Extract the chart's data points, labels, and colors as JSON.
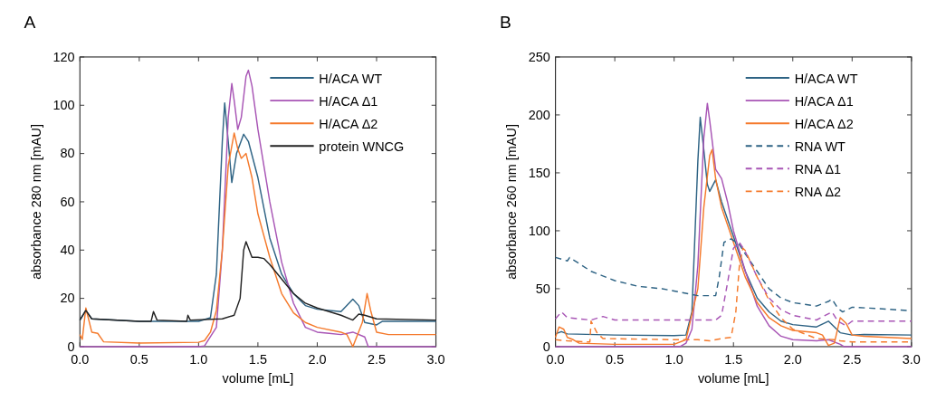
{
  "chart_data": [
    {
      "type": "line",
      "title": "A",
      "xlabel": "volume [mL]",
      "ylabel": "absorbance 280 nm [mAU]",
      "xlim": [
        0,
        3
      ],
      "ylim": [
        0,
        120
      ],
      "xticks": [
        {
          "value": 0,
          "label": "0.0"
        },
        {
          "value": 0.5,
          "label": "0.5"
        },
        {
          "value": 1,
          "label": "1.0"
        },
        {
          "value": 1.5,
          "label": "1.5"
        },
        {
          "value": 2,
          "label": "2.0"
        },
        {
          "value": 2.5,
          "label": "2.5"
        },
        {
          "value": 3,
          "label": "3.0"
        }
      ],
      "yticks": [
        0,
        20,
        40,
        60,
        80,
        100,
        120
      ],
      "legend": "top right",
      "grid": false,
      "series": [
        {
          "name": "H/ACA WT",
          "color": "#2e6384",
          "line_style": "solid",
          "x": [
            0,
            0.05,
            0.1,
            0.5,
            1.0,
            1.1,
            1.15,
            1.2,
            1.22,
            1.25,
            1.28,
            1.32,
            1.38,
            1.42,
            1.5,
            1.6,
            1.7,
            1.8,
            1.9,
            2.0,
            2.2,
            2.3,
            2.35,
            2.4,
            2.5,
            2.55,
            3.0
          ],
          "values": [
            11,
            15,
            11.5,
            10.5,
            10.5,
            12,
            30,
            85,
            101,
            85,
            68,
            80,
            88,
            85,
            70,
            45,
            30,
            22,
            17,
            15.5,
            14.5,
            19.7,
            17,
            10,
            9,
            10.5,
            10.5
          ]
        },
        {
          "name": "H/ACA Δ1",
          "color": "#a855b5",
          "line_style": "solid",
          "x": [
            0,
            1.0,
            1.05,
            1.15,
            1.2,
            1.25,
            1.28,
            1.3,
            1.33,
            1.36,
            1.4,
            1.42,
            1.45,
            1.5,
            1.6,
            1.7,
            1.8,
            1.9,
            2.0,
            2.1,
            2.2,
            2.3,
            2.4,
            2.43,
            3.0
          ],
          "values": [
            0,
            0,
            0.3,
            8,
            40,
            95,
            109,
            102,
            90,
            95,
            112,
            114.5,
            108,
            90,
            60,
            35,
            18,
            8,
            6,
            5.5,
            5,
            6,
            4,
            0,
            0
          ]
        },
        {
          "name": "H/ACA Δ2",
          "color": "#f57a2c",
          "line_style": "solid",
          "x": [
            0,
            0.02,
            0.05,
            0.1,
            0.15,
            0.2,
            0.5,
            1.0,
            1.05,
            1.1,
            1.15,
            1.2,
            1.25,
            1.3,
            1.33,
            1.36,
            1.4,
            1.45,
            1.5,
            1.6,
            1.7,
            1.8,
            1.9,
            2.0,
            2.2,
            2.25,
            2.3,
            2.38,
            2.42,
            2.45,
            2.5,
            2.6,
            3.0
          ],
          "values": [
            5,
            3,
            16,
            6,
            5.5,
            2,
            1.5,
            1.8,
            2.5,
            6,
            15,
            40,
            75,
            88.5,
            82,
            78,
            80,
            70,
            55,
            37,
            22,
            14,
            10,
            8,
            6,
            5,
            0,
            10,
            22,
            15,
            6,
            5,
            5
          ]
        },
        {
          "name": "protein WNCG",
          "color": "#222222",
          "line_style": "solid",
          "x": [
            0,
            0.05,
            0.1,
            0.5,
            0.6,
            0.62,
            0.65,
            0.9,
            0.91,
            0.93,
            1.2,
            1.3,
            1.35,
            1.38,
            1.4,
            1.45,
            1.5,
            1.55,
            1.6,
            1.7,
            1.8,
            1.9,
            2.0,
            2.2,
            2.3,
            2.35,
            2.4,
            2.5,
            3.0
          ],
          "values": [
            11,
            15,
            11.5,
            10.5,
            10.5,
            14.5,
            11,
            10.5,
            13,
            11,
            11.5,
            13,
            20,
            40,
            43.5,
            37,
            37,
            36.5,
            34,
            28,
            22,
            18,
            16,
            13,
            11,
            13.5,
            13,
            11.5,
            11
          ]
        }
      ]
    },
    {
      "type": "line",
      "title": "B",
      "xlabel": "volume [mL]",
      "ylabel": "absorbance 260 nm [mAU]",
      "xlim": [
        0,
        3
      ],
      "ylim": [
        0,
        250
      ],
      "xticks": [
        {
          "value": 0,
          "label": "0.0"
        },
        {
          "value": 0.5,
          "label": "0.5"
        },
        {
          "value": 1,
          "label": "1.0"
        },
        {
          "value": 1.5,
          "label": "1.5"
        },
        {
          "value": 2,
          "label": "2.0"
        },
        {
          "value": 2.5,
          "label": "2.5"
        },
        {
          "value": 3,
          "label": "3.0"
        }
      ],
      "yticks": [
        0,
        50,
        100,
        150,
        200,
        250
      ],
      "legend": "top right",
      "grid": false,
      "series": [
        {
          "name": "H/ACA WT",
          "color": "#2e6384",
          "line_style": "solid",
          "x": [
            0,
            0.05,
            0.1,
            0.5,
            1.0,
            1.1,
            1.15,
            1.2,
            1.22,
            1.25,
            1.28,
            1.3,
            1.35,
            1.4,
            1.5,
            1.6,
            1.7,
            1.8,
            1.9,
            2.0,
            2.2,
            2.3,
            2.4,
            2.5,
            2.6,
            3.0
          ],
          "values": [
            11,
            13,
            11,
            10,
            9.5,
            10,
            30,
            160,
            198,
            170,
            140,
            134,
            144,
            125,
            95,
            65,
            42,
            30,
            22,
            19,
            17,
            22,
            12,
            10,
            10.5,
            10
          ]
        },
        {
          "name": "H/ACA Δ1",
          "color": "#a855b5",
          "line_style": "solid",
          "x": [
            0,
            1.05,
            1.1,
            1.15,
            1.2,
            1.25,
            1.28,
            1.3,
            1.35,
            1.4,
            1.45,
            1.5,
            1.6,
            1.7,
            1.8,
            1.9,
            2.0,
            2.2,
            2.3,
            2.4,
            2.43,
            3.0
          ],
          "values": [
            0,
            0,
            3,
            15,
            70,
            180,
            210,
            195,
            153,
            145,
            125,
            100,
            65,
            35,
            18,
            9,
            6,
            5,
            6,
            2,
            0,
            0
          ]
        },
        {
          "name": "H/ACA Δ2",
          "color": "#f57a2c",
          "line_style": "solid",
          "x": [
            0,
            0.03,
            0.07,
            0.1,
            0.15,
            0.2,
            0.5,
            1.0,
            1.1,
            1.2,
            1.25,
            1.3,
            1.32,
            1.35,
            1.4,
            1.5,
            1.6,
            1.7,
            1.8,
            1.9,
            2.0,
            2.2,
            2.25,
            2.3,
            2.35,
            2.4,
            2.45,
            2.5,
            2.6,
            3.0
          ],
          "values": [
            8,
            17,
            15,
            8,
            6,
            3,
            2,
            2,
            6,
            50,
            120,
            165,
            170,
            145,
            120,
            90,
            60,
            38,
            25,
            18,
            14,
            12,
            10,
            1,
            3,
            25,
            20,
            10,
            9,
            7
          ]
        },
        {
          "name": "RNA WT",
          "color": "#2e6384",
          "line_style": "dashed",
          "x": [
            0,
            0.1,
            0.12,
            0.3,
            0.5,
            0.7,
            0.9,
            1.0,
            1.2,
            1.35,
            1.38,
            1.42,
            1.48,
            1.55,
            1.6,
            1.7,
            1.8,
            1.9,
            2.0,
            2.2,
            2.3,
            2.33,
            2.38,
            2.42,
            2.5,
            2.7,
            3.0
          ],
          "values": [
            77,
            74,
            77,
            65,
            57,
            52,
            50,
            48,
            44,
            44,
            60,
            90,
            93,
            88,
            80,
            65,
            50,
            42,
            38,
            35,
            39,
            41,
            33,
            30,
            34,
            33,
            31
          ]
        },
        {
          "name": "RNA Δ1",
          "color": "#a855b5",
          "line_style": "dashed",
          "x": [
            0,
            0.05,
            0.1,
            0.3,
            0.4,
            0.5,
            1.0,
            1.35,
            1.4,
            1.45,
            1.5,
            1.55,
            1.6,
            1.7,
            1.8,
            1.9,
            2.0,
            2.2,
            2.33,
            2.38,
            2.45,
            2.5,
            3.0
          ],
          "values": [
            24,
            30,
            25,
            23,
            26,
            23,
            23,
            23,
            27,
            55,
            85,
            90,
            82,
            60,
            42,
            32,
            27,
            23,
            30,
            22,
            18,
            22,
            22
          ]
        },
        {
          "name": "RNA Δ2",
          "color": "#f57a2c",
          "line_style": "dashed",
          "x": [
            0,
            0.1,
            0.29,
            0.3,
            0.35,
            0.4,
            1.0,
            1.2,
            1.3,
            1.4,
            1.48,
            1.52,
            1.55,
            1.58,
            1.6,
            1.7,
            1.8,
            1.9,
            2.0,
            2.2,
            2.35,
            2.4,
            2.5,
            3.0
          ],
          "values": [
            6,
            5,
            4,
            22,
            12,
            7,
            6,
            6,
            5,
            7,
            8,
            30,
            70,
            85,
            83,
            60,
            40,
            25,
            15,
            7,
            6,
            5,
            4,
            4
          ]
        }
      ]
    }
  ]
}
